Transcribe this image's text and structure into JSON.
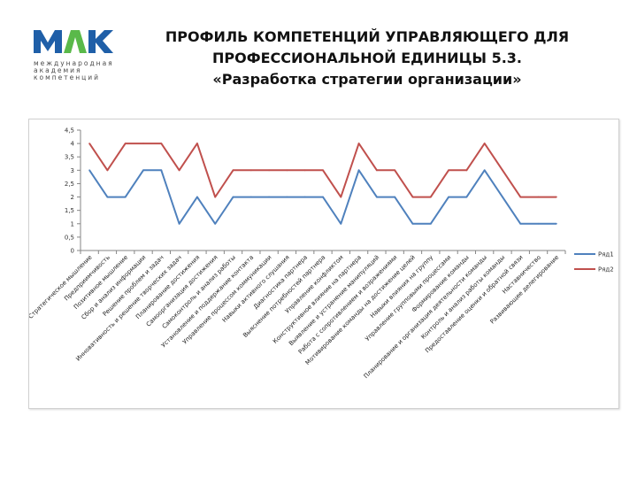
{
  "header": {
    "logo_lines": [
      "международная",
      "академия",
      "компетенций"
    ],
    "title_lines": [
      "ПРОФИЛЬ КОМПЕТЕНЦИЙ УПРАВЛЯЮЩЕГО ДЛЯ",
      "ПРОФЕССИОНАЛЬНОЙ ЕДИНИЦЫ 5.3.",
      "«Разработка стратегии организации»"
    ]
  },
  "colors": {
    "series1": "#4f81bd",
    "series2": "#c0504d",
    "logo_blue": "#1f5fa8",
    "logo_green": "#5ab94a"
  },
  "chart_data": {
    "type": "line",
    "title": "",
    "xlabel": "",
    "ylabel": "",
    "ylim": [
      0,
      4.5
    ],
    "yticks": [
      "0",
      "0,5",
      "1",
      "1,5",
      "2",
      "2,5",
      "3",
      "3,5",
      "4",
      "4,5"
    ],
    "grid": false,
    "legend": "right",
    "categories": [
      "Стратегическое мышление",
      "Предприимчивость",
      "Позитивное мышление",
      "Сбор и анализ информации",
      "Решение проблем и задач",
      "Инновативность и решение творческих задач",
      "Планирование достижения",
      "Самоорганизация достижения",
      "Самоконтроль и анализ работы",
      "Установление и поддержание контакта",
      "Управление процессом коммуникации",
      "Навыки активного слушания",
      "Диагностика партнера",
      "Выяснение потребностей партнера",
      "Управление конфликтом",
      "Конструктивное влияние на партнера",
      "Выявление и устранение манипуляций",
      "Работа с сопротивлением и возражениями",
      "Мотивирование команды на достижение целей",
      "Навыки влияния на группу",
      "Управление групповыми процессами",
      "Формирование команды",
      "Планирование и организация деятельности команды",
      "Контроль и анализ работы команды",
      "Предоставление оценки и обратной связи",
      "Наставничество",
      "Развивающее делегирование"
    ],
    "series": [
      {
        "name": "Ряд1",
        "values": [
          3,
          2,
          2,
          3,
          3,
          1,
          2,
          1,
          2,
          2,
          2,
          2,
          2,
          2,
          1,
          3,
          2,
          2,
          1,
          1,
          2,
          2,
          3,
          2,
          1,
          1,
          1
        ]
      },
      {
        "name": "Ряд2",
        "values": [
          4,
          3,
          4,
          4,
          4,
          3,
          4,
          2,
          3,
          3,
          3,
          3,
          3,
          3,
          2,
          4,
          3,
          3,
          2,
          2,
          3,
          3,
          4,
          3,
          2,
          2,
          2
        ]
      }
    ]
  }
}
